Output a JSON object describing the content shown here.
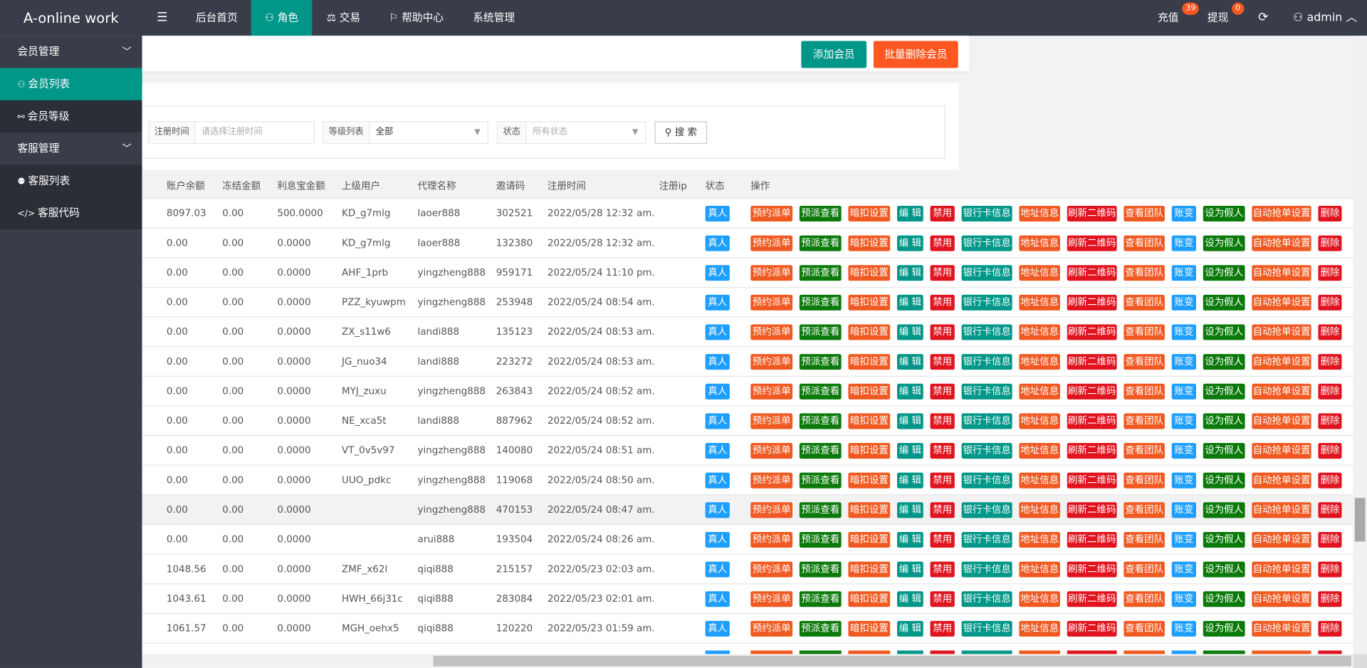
{
  "header": {
    "logo": "A-online work",
    "nav": [
      "后台首页",
      "角色",
      "交易",
      "帮助中心",
      "系统管理"
    ],
    "recharge": "充值",
    "recharge_badge": "39",
    "withdraw": "提现",
    "withdraw_badge": "0",
    "user": "admin"
  },
  "sidebar": {
    "groups": [
      {
        "title": "会员管理",
        "items": [
          "会员列表",
          "会员等级"
        ]
      },
      {
        "title": "客服管理",
        "items": [
          "客服列表",
          "客服代码"
        ]
      }
    ]
  },
  "toolbar": {
    "buttons": [
      "添加会员",
      "批量删除会员"
    ]
  },
  "search": {
    "fields": [
      {
        "label": "注册时间",
        "placeholder": "请选择注册时间"
      },
      {
        "label": "等级列表",
        "value": "全部"
      },
      {
        "label": "状态",
        "placeholder": "所有状态"
      }
    ],
    "button": "搜 索"
  },
  "table": {
    "columns": [
      "账户余额",
      "冻结金额",
      "利息宝金额",
      "上级用户",
      "代理名称",
      "邀请码",
      "注册时间",
      "注册ip",
      "状态",
      "操作"
    ],
    "action_buttons": [
      "预约派单",
      "预派查看",
      "暗扣设置",
      "编 辑",
      "禁用",
      "银行卡信息",
      "地址信息",
      "刷新二维码",
      "查看团队",
      "账变",
      "设为假人",
      "自动抢单设置",
      "删除"
    ],
    "rows": [
      [
        "8097.03",
        "0.00",
        "500.0000",
        "KD_g7mlg",
        "laoer888",
        "302521",
        "2022/05/28 12:32 am.",
        null,
        "真人"
      ],
      [
        "0.00",
        "0.00",
        "0.0000",
        "KD_g7mlg",
        "laoer888",
        "132380",
        "2022/05/28 12:32 am.",
        null,
        "真人"
      ],
      [
        "0.00",
        "0.00",
        "0.0000",
        "AHF_1prb",
        "yingzheng888",
        "959171",
        "2022/05/24 11:10 pm.",
        null,
        "真人"
      ],
      [
        "0.00",
        "0.00",
        "0.0000",
        "PZZ_kyuwpm",
        "yingzheng888",
        "253948",
        "2022/05/24 08:54 am.",
        null,
        "真人"
      ],
      [
        "0.00",
        "0.00",
        "0.0000",
        "ZX_s11w6",
        "landi888",
        "135123",
        "2022/05/24 08:53 am.",
        null,
        "真人"
      ],
      [
        "0.00",
        "0.00",
        "0.0000",
        "JG_nuo34",
        "landi888",
        "223272",
        "2022/05/24 08:53 am.",
        null,
        "真人"
      ],
      [
        "0.00",
        "0.00",
        "0.0000",
        "MYJ_zuxu",
        "yingzheng888",
        "263843",
        "2022/05/24 08:52 am.",
        null,
        "真人"
      ],
      [
        "0.00",
        "0.00",
        "0.0000",
        "NE_xca5t",
        "landi888",
        "887962",
        "2022/05/24 08:52 am.",
        null,
        "真人"
      ],
      [
        "0.00",
        "0.00",
        "0.0000",
        "VT_0v5v97",
        "yingzheng888",
        "140080",
        "2022/05/24 08:51 am.",
        null,
        "真人"
      ],
      [
        "0.00",
        "0.00",
        "0.0000",
        "UUO_pdkc",
        "yingzheng888",
        "119068",
        "2022/05/24 08:50 am.",
        null,
        "真人"
      ],
      [
        "0.00",
        "0.00",
        "0.0000",
        null,
        "yingzheng888",
        "470153",
        "2022/05/24 08:47 am.",
        null,
        "真人"
      ],
      [
        "0.00",
        "0.00",
        "0.0000",
        null,
        "arui888",
        "193504",
        "2022/05/24 08:26 am.",
        null,
        "真人"
      ],
      [
        "1048.56",
        "0.00",
        "0.0000",
        "ZMF_x62l",
        "qiqi888",
        "215157",
        "2022/05/23 02:03 am.",
        null,
        "真人"
      ],
      [
        "1043.61",
        "0.00",
        "0.0000",
        "HWH_66j31c",
        "qiqi888",
        "283084",
        "2022/05/23 02:01 am.",
        null,
        "真人"
      ],
      [
        "1061.57",
        "0.00",
        "0.0000",
        "MGH_oehx5",
        "qiqi888",
        "120220",
        "2022/05/23 01:59 am.",
        null,
        "真人"
      ]
    ]
  }
}
